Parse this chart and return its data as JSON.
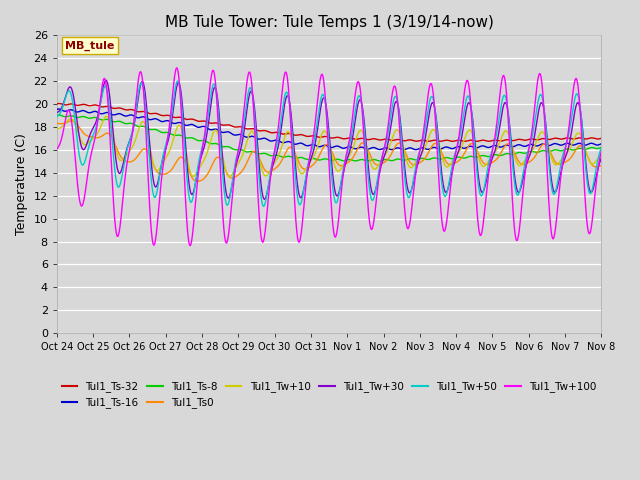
{
  "title": "MB Tule Tower: Tule Temps 1 (3/19/14-now)",
  "ylabel": "Temperature (C)",
  "ylim": [
    0,
    26
  ],
  "yticks": [
    0,
    2,
    4,
    6,
    8,
    10,
    12,
    14,
    16,
    18,
    20,
    22,
    24,
    26
  ],
  "background_color": "#d8d8d8",
  "plot_bg_color": "#d8d8d8",
  "grid_color": "#ffffff",
  "series": [
    {
      "name": "Tul1_Ts-32",
      "color": "#cc0000"
    },
    {
      "name": "Tul1_Ts-16",
      "color": "#0000cc"
    },
    {
      "name": "Tul1_Ts-8",
      "color": "#00cc00"
    },
    {
      "name": "Tul1_Ts0",
      "color": "#ff8800"
    },
    {
      "name": "Tul1_Tw+10",
      "color": "#cccc00"
    },
    {
      "name": "Tul1_Tw+30",
      "color": "#8800cc"
    },
    {
      "name": "Tul1_Tw+50",
      "color": "#00cccc"
    },
    {
      "name": "Tul1_Tw+100",
      "color": "#ff00ff"
    }
  ],
  "x_tick_labels": [
    "Oct 24",
    "Oct 25",
    "Oct 26",
    "Oct 27",
    "Oct 28",
    "Oct 29",
    "Oct 30",
    "Oct 31",
    "Nov 1",
    "Nov 2",
    "Nov 3",
    "Nov 4",
    "Nov 5",
    "Nov 6",
    "Nov 7",
    "Nov 8"
  ]
}
